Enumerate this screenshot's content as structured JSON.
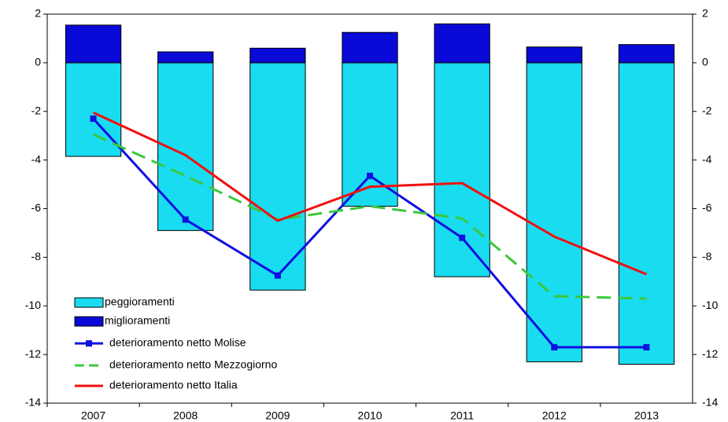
{
  "chart_data": {
    "type": "bar",
    "categories": [
      "2007",
      "2008",
      "2009",
      "2010",
      "2011",
      "2012",
      "2013"
    ],
    "series": [
      {
        "name": "peggioramenti",
        "type": "bar",
        "color": "#19dcf0",
        "values": [
          -3.85,
          -6.9,
          -9.35,
          -5.9,
          -8.8,
          -12.3,
          -12.4
        ]
      },
      {
        "name": "miglioramenti",
        "type": "bar",
        "color": "#0a0ad8",
        "values": [
          1.55,
          0.45,
          0.6,
          1.25,
          1.6,
          0.65,
          0.75
        ]
      },
      {
        "name": "deterioramento netto Molise",
        "type": "line",
        "color": "#1010e0",
        "marker": "square",
        "values": [
          -2.3,
          -6.45,
          -8.75,
          -4.65,
          -7.2,
          -11.7,
          -11.7
        ]
      },
      {
        "name": "deterioramento netto Mezzogiorno",
        "type": "line",
        "color": "#3cc83c",
        "dash": true,
        "values": [
          -2.95,
          -4.65,
          -6.45,
          -5.9,
          -6.4,
          -9.6,
          -9.7
        ]
      },
      {
        "name": "deterioramento netto Italia",
        "type": "line",
        "color": "#f01010",
        "values": [
          -2.05,
          -3.8,
          -6.5,
          -5.1,
          -4.95,
          -7.15,
          -8.7
        ]
      }
    ],
    "ylim": [
      -14,
      2
    ],
    "yticks": [
      -14,
      -12,
      -10,
      -8,
      -6,
      -4,
      -2,
      0,
      2
    ],
    "y2lim": [
      -14,
      2
    ],
    "y2ticks": [
      -14,
      -12,
      -10,
      -8,
      -6,
      -4,
      -2,
      0,
      2
    ],
    "legend": "lower left"
  }
}
